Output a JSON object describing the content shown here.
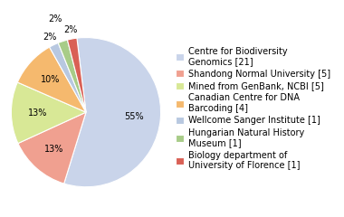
{
  "chart_data": {
    "type": "pie",
    "categories": [
      "Centre for Biodiversity\nGenomics [21]",
      "Shandong Normal University [5]",
      "Mined from GenBank, NCBI [5]",
      "Canadian Centre for DNA\nBarcoding [4]",
      "Wellcome Sanger Institute [1]",
      "Hungarian Natural History\nMuseum [1]",
      "Biology department of\nUniversity of Florence [1]"
    ],
    "values": [
      55,
      13,
      13,
      10,
      2,
      2,
      2
    ],
    "value_labels": [
      "55%",
      "13%",
      "13%",
      "10%",
      "2%",
      "2%",
      "2%"
    ],
    "colors": [
      "#c9d4ea",
      "#f0a090",
      "#d8e896",
      "#f5b96e",
      "#b8c8e0",
      "#a8cc88",
      "#d96055"
    ],
    "data_labels": true,
    "legend": "right"
  }
}
